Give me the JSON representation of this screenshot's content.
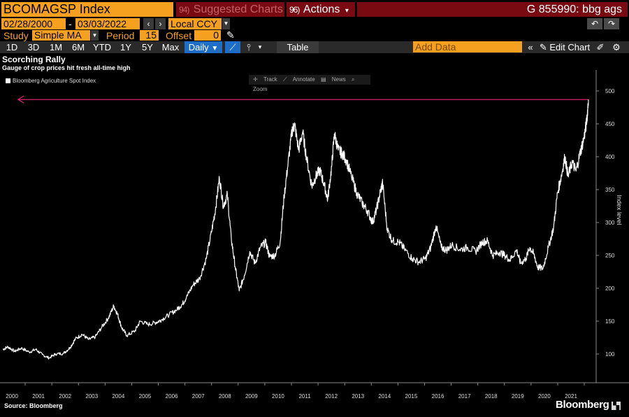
{
  "toolbar": {
    "ticker": "BCOMAGSP Index",
    "suggested_badge": "94)",
    "suggested_label": "Suggested Charts",
    "actions_badge": "96)",
    "actions_label": "Actions",
    "actions_arrow": "▾",
    "g_code": "G 855990: bbg ags"
  },
  "range": {
    "start": "02/28/2000",
    "sep": "-",
    "end": "03/03/2022",
    "currency": "Local CCY"
  },
  "study": {
    "label": "Study",
    "value": "Simple MA",
    "period_label": "Period",
    "period_value": "15",
    "offset_label": "Offset",
    "offset_value": "0"
  },
  "timeframes": [
    "1D",
    "3D",
    "1M",
    "6M",
    "YTD",
    "1Y",
    "5Y",
    "Max"
  ],
  "frequency": "Daily",
  "table_label": "Table",
  "add_data_placeholder": "Add Data",
  "edit_chart_label": "Edit Chart",
  "chart_tools": [
    "Track",
    "Annotate",
    "News",
    "Zoom"
  ],
  "chart_data": {
    "type": "line",
    "title": "Scorching Rally",
    "subtitle": "Gauge of crop prices hit fresh all-time high",
    "series": [
      {
        "name": "Bloomberg Agriculture Spot Index",
        "color": "#ffffff"
      }
    ],
    "ylabel": "Index level",
    "ylim": [
      50,
      520
    ],
    "yticks": [
      100,
      150,
      200,
      250,
      300,
      350,
      400,
      450,
      500
    ],
    "xtick_labels": [
      "2000",
      "2001",
      "2002",
      "2003",
      "2004",
      "2005",
      "2006",
      "2007",
      "2008",
      "2009",
      "2010",
      "2011",
      "2012",
      "2013",
      "2014",
      "2015",
      "2016",
      "2017",
      "2018",
      "2019",
      "2020",
      "2021"
    ],
    "xlim": [
      2000.0,
      2022.25
    ],
    "reference_line": {
      "value": 487,
      "color": "#ff2a8a"
    },
    "points": [
      [
        2000.0,
        107
      ],
      [
        2000.2,
        111
      ],
      [
        2000.45,
        104
      ],
      [
        2000.7,
        109
      ],
      [
        2001.0,
        103
      ],
      [
        2001.25,
        107
      ],
      [
        2001.5,
        99
      ],
      [
        2001.75,
        94
      ],
      [
        2002.0,
        100
      ],
      [
        2002.3,
        101
      ],
      [
        2002.55,
        110
      ],
      [
        2002.75,
        123
      ],
      [
        2003.0,
        130
      ],
      [
        2003.25,
        122
      ],
      [
        2003.5,
        126
      ],
      [
        2003.75,
        141
      ],
      [
        2004.0,
        155
      ],
      [
        2004.2,
        173
      ],
      [
        2004.35,
        160
      ],
      [
        2004.5,
        140
      ],
      [
        2004.7,
        128
      ],
      [
        2005.0,
        135
      ],
      [
        2005.2,
        150
      ],
      [
        2005.5,
        145
      ],
      [
        2005.8,
        148
      ],
      [
        2006.0,
        152
      ],
      [
        2006.3,
        160
      ],
      [
        2006.6,
        168
      ],
      [
        2006.8,
        176
      ],
      [
        2006.95,
        186
      ],
      [
        2007.2,
        205
      ],
      [
        2007.45,
        215
      ],
      [
        2007.7,
        245
      ],
      [
        2007.9,
        285
      ],
      [
        2008.05,
        320
      ],
      [
        2008.2,
        368
      ],
      [
        2008.35,
        325
      ],
      [
        2008.5,
        342
      ],
      [
        2008.65,
        275
      ],
      [
        2008.8,
        232
      ],
      [
        2008.95,
        196
      ],
      [
        2009.15,
        220
      ],
      [
        2009.35,
        256
      ],
      [
        2009.55,
        238
      ],
      [
        2009.75,
        262
      ],
      [
        2009.95,
        270
      ],
      [
        2010.1,
        248
      ],
      [
        2010.3,
        250
      ],
      [
        2010.5,
        270
      ],
      [
        2010.65,
        340
      ],
      [
        2010.8,
        390
      ],
      [
        2010.95,
        440
      ],
      [
        2011.05,
        448
      ],
      [
        2011.2,
        410
      ],
      [
        2011.35,
        438
      ],
      [
        2011.5,
        398
      ],
      [
        2011.7,
        355
      ],
      [
        2011.85,
        370
      ],
      [
        2012.0,
        380
      ],
      [
        2012.15,
        360
      ],
      [
        2012.3,
        335
      ],
      [
        2012.45,
        385
      ],
      [
        2012.55,
        435
      ],
      [
        2012.7,
        410
      ],
      [
        2012.85,
        405
      ],
      [
        2013.0,
        395
      ],
      [
        2013.2,
        370
      ],
      [
        2013.4,
        345
      ],
      [
        2013.6,
        330
      ],
      [
        2013.8,
        318
      ],
      [
        2014.0,
        300
      ],
      [
        2014.15,
        320
      ],
      [
        2014.3,
        348
      ],
      [
        2014.38,
        360
      ],
      [
        2014.55,
        290
      ],
      [
        2014.75,
        272
      ],
      [
        2015.0,
        270
      ],
      [
        2015.2,
        260
      ],
      [
        2015.5,
        245
      ],
      [
        2015.75,
        240
      ],
      [
        2016.0,
        245
      ],
      [
        2016.2,
        262
      ],
      [
        2016.4,
        295
      ],
      [
        2016.6,
        262
      ],
      [
        2016.8,
        258
      ],
      [
        2017.0,
        266
      ],
      [
        2017.3,
        259
      ],
      [
        2017.6,
        262
      ],
      [
        2017.9,
        256
      ],
      [
        2018.15,
        270
      ],
      [
        2018.35,
        272
      ],
      [
        2018.55,
        250
      ],
      [
        2018.8,
        255
      ],
      [
        2019.0,
        250
      ],
      [
        2019.2,
        243
      ],
      [
        2019.45,
        258
      ],
      [
        2019.6,
        238
      ],
      [
        2019.8,
        245
      ],
      [
        2019.95,
        262
      ],
      [
        2020.1,
        252
      ],
      [
        2020.25,
        232
      ],
      [
        2020.45,
        230
      ],
      [
        2020.65,
        262
      ],
      [
        2020.85,
        292
      ],
      [
        2021.0,
        345
      ],
      [
        2021.15,
        372
      ],
      [
        2021.28,
        400
      ],
      [
        2021.4,
        370
      ],
      [
        2021.55,
        392
      ],
      [
        2021.7,
        378
      ],
      [
        2021.85,
        405
      ],
      [
        2022.0,
        428
      ],
      [
        2022.1,
        452
      ],
      [
        2022.17,
        487
      ]
    ]
  },
  "source": "Source: Bloomberg",
  "brand": "Bloomberg"
}
